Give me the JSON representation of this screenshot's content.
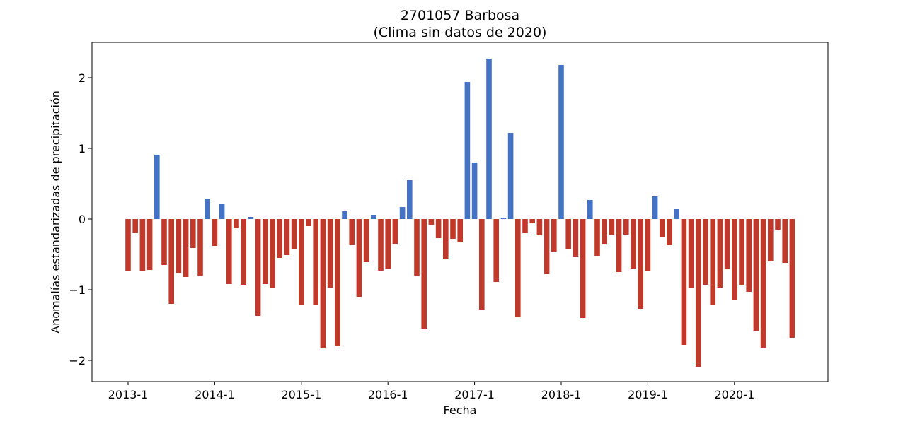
{
  "chart_data": {
    "type": "bar",
    "title": "2701057 Barbosa",
    "subtitle": "(Clima sin datos de 2020)",
    "xlabel": "Fecha",
    "ylabel": "Anomalías estandarizadas de precipitación",
    "ylim": [
      -2.3,
      2.5
    ],
    "y_ticks": [
      -2,
      -1,
      0,
      1,
      2
    ],
    "y_tick_labels": [
      "−2",
      "−1",
      "0",
      "1",
      "2"
    ],
    "x_tick_labels": [
      "2013-1",
      "2014-1",
      "2015-1",
      "2016-1",
      "2017-1",
      "2018-1",
      "2019-1",
      "2020-1"
    ],
    "x_tick_months": [
      "2013-1",
      "2014-1",
      "2015-1",
      "2016-1",
      "2017-1",
      "2018-1",
      "2019-1",
      "2020-1"
    ],
    "start_month": "2013-1",
    "grid": false,
    "colors": {
      "positive": "#4472c4",
      "negative": "#c0392b"
    },
    "values": [
      -0.74,
      -0.2,
      -0.74,
      -0.72,
      0.91,
      -0.65,
      -1.2,
      -0.77,
      -0.82,
      -0.41,
      -0.8,
      0.29,
      -0.38,
      0.22,
      -0.92,
      -0.13,
      -0.93,
      0.03,
      -1.37,
      -0.92,
      -0.98,
      -0.55,
      -0.51,
      -0.42,
      -1.22,
      -0.1,
      -1.22,
      -1.83,
      -0.97,
      -1.8,
      0.11,
      -0.36,
      -1.1,
      -0.61,
      0.06,
      -0.73,
      -0.7,
      -0.35,
      0.17,
      0.55,
      -0.8,
      -1.55,
      -0.08,
      -0.27,
      -0.57,
      -0.28,
      -0.33,
      1.94,
      0.8,
      -1.28,
      2.27,
      -0.89,
      0.01,
      1.22,
      -1.39,
      -0.2,
      -0.06,
      -0.23,
      -0.78,
      -0.46,
      2.18,
      -0.42,
      -0.53,
      -1.4,
      0.27,
      -0.52,
      -0.35,
      -0.22,
      -0.75,
      -0.22,
      -0.7,
      -1.27,
      -0.74,
      0.32,
      -0.26,
      -0.37,
      0.14,
      -1.78,
      -0.98,
      -2.09,
      -0.93,
      -1.22,
      -0.97,
      -0.71,
      -1.14,
      -0.94,
      -1.03,
      -1.58,
      -1.82,
      -0.6,
      -0.15,
      -0.62,
      -1.68
    ]
  }
}
